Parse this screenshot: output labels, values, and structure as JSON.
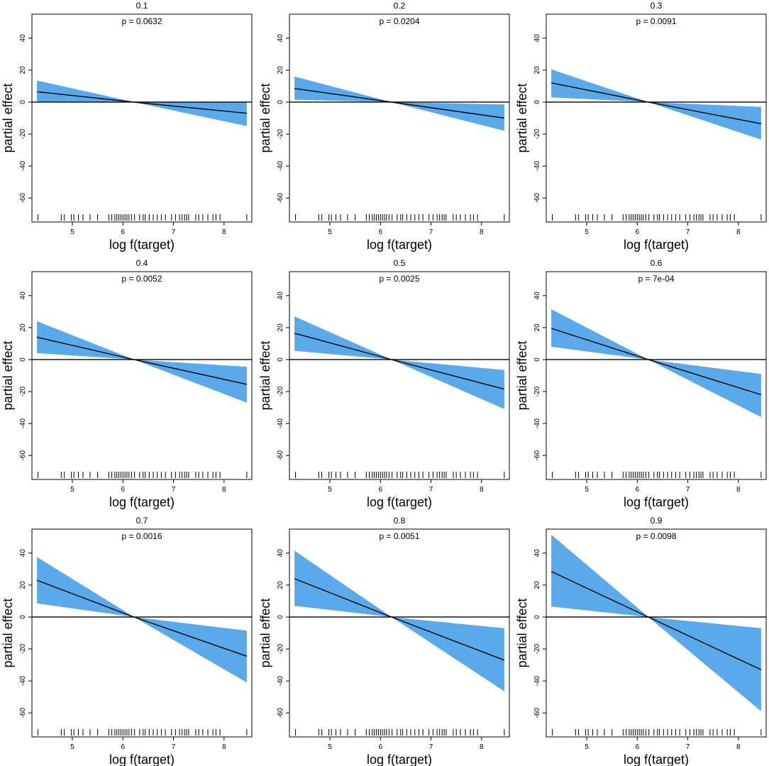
{
  "shared": {
    "xlabel": "log f(target)",
    "ylabel": "partial effect",
    "xlim": [
      4.2,
      8.55
    ],
    "ylim": [
      -75,
      55
    ],
    "xticks": [
      5,
      6,
      7,
      8
    ],
    "yticks": [
      -60,
      -40,
      -20,
      0,
      20,
      40
    ],
    "rug": [
      4.32,
      4.78,
      4.84,
      4.98,
      5.03,
      5.12,
      5.21,
      5.35,
      5.5,
      5.72,
      5.78,
      5.84,
      5.88,
      5.92,
      5.96,
      6.0,
      6.04,
      6.08,
      6.12,
      6.17,
      6.23,
      6.33,
      6.4,
      6.44,
      6.52,
      6.6,
      6.68,
      6.76,
      6.84,
      6.96,
      7.04,
      7.12,
      7.17,
      7.22,
      7.26,
      7.3,
      7.44,
      7.5,
      7.58,
      7.68,
      7.78,
      7.84,
      7.92,
      8.45
    ],
    "fill_color": "#5aa9ea",
    "line_color": "#000000"
  },
  "chart_data": [
    {
      "type": "line",
      "title": "0.1",
      "p_label": "p =  0.0632",
      "x": [
        4.3,
        6.22,
        8.45
      ],
      "fit": [
        6.5,
        0,
        -7
      ],
      "lower": [
        0,
        0,
        -15
      ],
      "upper": [
        13.5,
        0,
        0
      ]
    },
    {
      "type": "line",
      "title": "0.2",
      "p_label": "p =  0.0204",
      "x": [
        4.3,
        6.22,
        8.45
      ],
      "fit": [
        8.5,
        0,
        -10
      ],
      "lower": [
        1.5,
        0,
        -18
      ],
      "upper": [
        16,
        0,
        -1.5
      ]
    },
    {
      "type": "line",
      "title": "0.3",
      "p_label": "p =  0.0091",
      "x": [
        4.3,
        6.22,
        8.45
      ],
      "fit": [
        12,
        0,
        -13.5
      ],
      "lower": [
        3,
        0,
        -23.5
      ],
      "upper": [
        20.5,
        0,
        -3
      ]
    },
    {
      "type": "line",
      "title": "0.4",
      "p_label": "p =  0.0052",
      "x": [
        4.3,
        6.22,
        8.45
      ],
      "fit": [
        14,
        0,
        -15.5
      ],
      "lower": [
        4,
        0,
        -27
      ],
      "upper": [
        24,
        0,
        -4.5
      ]
    },
    {
      "type": "line",
      "title": "0.5",
      "p_label": "p =  0.0025",
      "x": [
        4.3,
        6.22,
        8.45
      ],
      "fit": [
        16.5,
        0,
        -18.5
      ],
      "lower": [
        5.5,
        0,
        -31
      ],
      "upper": [
        27,
        0,
        -6.5
      ]
    },
    {
      "type": "line",
      "title": "0.6",
      "p_label": "p =  7e-04",
      "x": [
        4.3,
        6.22,
        8.45
      ],
      "fit": [
        19.5,
        0,
        -22
      ],
      "lower": [
        8,
        0,
        -36
      ],
      "upper": [
        31.5,
        0,
        -9
      ]
    },
    {
      "type": "line",
      "title": "0.7",
      "p_label": "p =  0.0016",
      "x": [
        4.3,
        6.22,
        8.45
      ],
      "fit": [
        23,
        0,
        -24.5
      ],
      "lower": [
        8.5,
        0,
        -41
      ],
      "upper": [
        37.5,
        0,
        -8.5
      ]
    },
    {
      "type": "line",
      "title": "0.8",
      "p_label": "p =  0.0051",
      "x": [
        4.3,
        6.22,
        8.45
      ],
      "fit": [
        24,
        0,
        -27
      ],
      "lower": [
        7,
        0,
        -46.5
      ],
      "upper": [
        41.5,
        0,
        -7
      ]
    },
    {
      "type": "line",
      "title": "0.9",
      "p_label": "p =  0.0098",
      "x": [
        4.3,
        6.22,
        8.45
      ],
      "fit": [
        28.5,
        0,
        -33
      ],
      "lower": [
        6.5,
        0,
        -59
      ],
      "upper": [
        51.5,
        0,
        -7
      ]
    }
  ]
}
